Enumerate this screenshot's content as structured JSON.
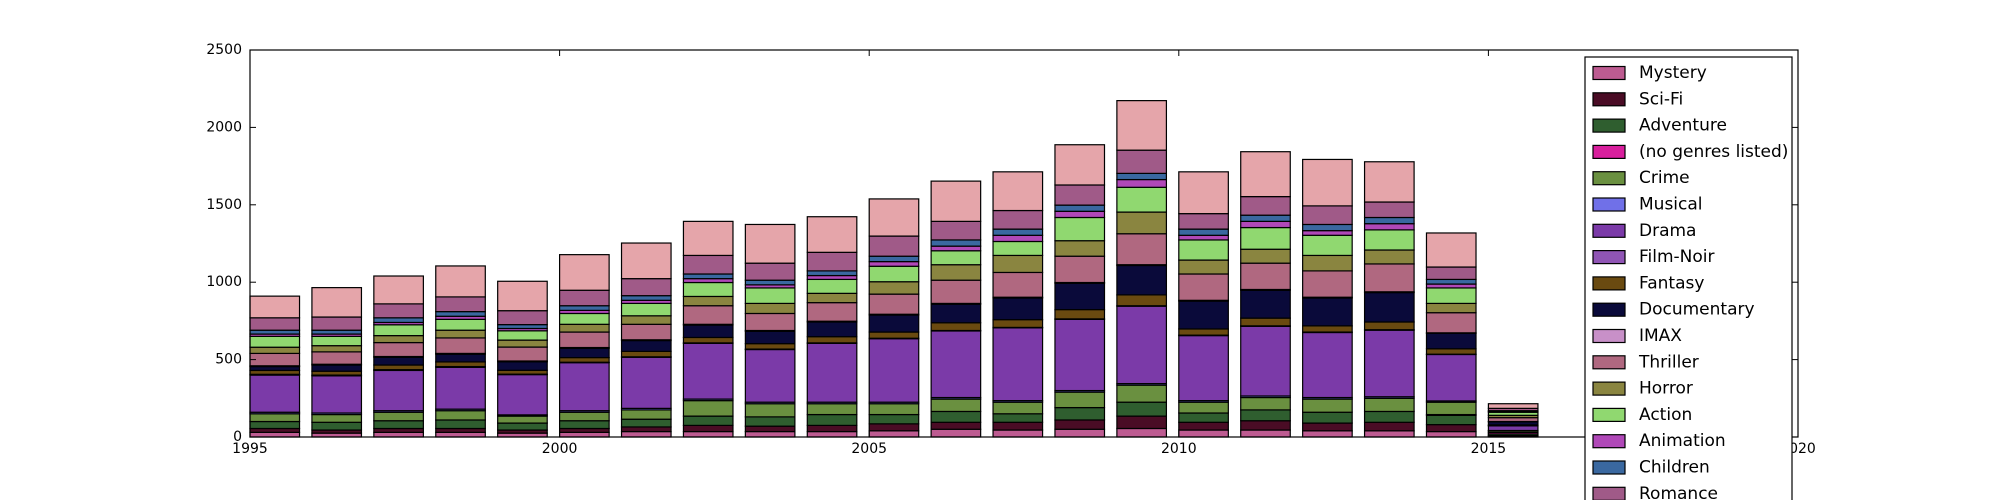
{
  "chart_data": {
    "type": "bar",
    "stacked": true,
    "x": [
      1995,
      1996,
      1997,
      1998,
      1999,
      2000,
      2001,
      2002,
      2003,
      2004,
      2005,
      2006,
      2007,
      2008,
      2009,
      2010,
      2011,
      2012,
      2013,
      2014,
      2015
    ],
    "xlim": [
      1995,
      2020
    ],
    "xticks": [
      1995,
      2000,
      2005,
      2010,
      2015,
      2020
    ],
    "ylim": [
      0,
      2500
    ],
    "yticks": [
      0,
      500,
      1000,
      1500,
      2000,
      2500
    ],
    "legend": "upper right",
    "series": [
      {
        "name": "Mystery",
        "color": "#bd5b91",
        "values": [
          30,
          25,
          30,
          30,
          25,
          30,
          35,
          35,
          35,
          35,
          40,
          50,
          45,
          50,
          55,
          45,
          45,
          40,
          40,
          35,
          5
        ]
      },
      {
        "name": "Sci-Fi",
        "color": "#4a0c25",
        "values": [
          25,
          20,
          25,
          25,
          20,
          25,
          30,
          40,
          35,
          40,
          45,
          45,
          50,
          60,
          80,
          50,
          60,
          50,
          55,
          45,
          5
        ]
      },
      {
        "name": "Adventure",
        "color": "#2f5e2f",
        "values": [
          45,
          50,
          50,
          55,
          45,
          50,
          50,
          60,
          60,
          70,
          60,
          70,
          55,
          80,
          90,
          60,
          70,
          70,
          70,
          60,
          10
        ]
      },
      {
        "name": "(no genres listed)",
        "color": "#d81f9d",
        "values": [
          0,
          0,
          0,
          0,
          0,
          0,
          0,
          0,
          0,
          0,
          0,
          0,
          0,
          0,
          0,
          0,
          0,
          0,
          0,
          5,
          10
        ]
      },
      {
        "name": "Crime",
        "color": "#6a9040",
        "values": [
          50,
          50,
          55,
          60,
          45,
          55,
          60,
          100,
          85,
          70,
          70,
          80,
          75,
          100,
          110,
          70,
          80,
          85,
          85,
          80,
          10
        ]
      },
      {
        "name": "Musical",
        "color": "#7070e8",
        "values": [
          10,
          10,
          10,
          10,
          8,
          10,
          10,
          10,
          10,
          10,
          10,
          10,
          10,
          10,
          10,
          10,
          10,
          10,
          10,
          8,
          2
        ]
      },
      {
        "name": "Drama",
        "color": "#7b3aa8",
        "values": [
          240,
          240,
          260,
          270,
          260,
          310,
          330,
          360,
          340,
          380,
          410,
          430,
          470,
          460,
          500,
          420,
          450,
          420,
          430,
          300,
          30
        ]
      },
      {
        "name": "Film-Noir",
        "color": "#9055b5",
        "values": [
          5,
          5,
          5,
          5,
          3,
          3,
          3,
          3,
          3,
          3,
          3,
          3,
          3,
          3,
          3,
          3,
          3,
          3,
          3,
          2,
          1
        ]
      },
      {
        "name": "Fantasy",
        "color": "#6a4a10",
        "values": [
          25,
          25,
          30,
          30,
          25,
          30,
          35,
          35,
          35,
          40,
          40,
          50,
          50,
          60,
          70,
          40,
          50,
          40,
          50,
          35,
          5
        ]
      },
      {
        "name": "Documentary",
        "color": "#0a0a3a",
        "values": [
          25,
          40,
          50,
          50,
          55,
          60,
          70,
          80,
          80,
          95,
          110,
          120,
          140,
          170,
          190,
          180,
          180,
          180,
          190,
          100,
          20
        ]
      },
      {
        "name": "IMAX",
        "color": "#c890c8",
        "values": [
          5,
          5,
          5,
          5,
          5,
          5,
          5,
          5,
          5,
          5,
          5,
          5,
          5,
          5,
          5,
          5,
          5,
          5,
          5,
          3,
          2
        ]
      },
      {
        "name": "Thriller",
        "color": "#b06880",
        "values": [
          80,
          80,
          90,
          100,
          90,
          100,
          100,
          120,
          110,
          120,
          130,
          150,
          160,
          170,
          200,
          170,
          170,
          170,
          180,
          130,
          25
        ]
      },
      {
        "name": "Horror",
        "color": "#8a8540",
        "values": [
          40,
          40,
          45,
          50,
          45,
          50,
          55,
          60,
          65,
          60,
          80,
          100,
          110,
          100,
          140,
          90,
          90,
          100,
          90,
          60,
          15
        ]
      },
      {
        "name": "Action",
        "color": "#90d870",
        "values": [
          70,
          60,
          70,
          70,
          60,
          70,
          80,
          90,
          100,
          90,
          100,
          90,
          90,
          150,
          160,
          130,
          140,
          130,
          130,
          100,
          20
        ]
      },
      {
        "name": "Animation",
        "color": "#b048b8",
        "values": [
          15,
          15,
          15,
          20,
          15,
          20,
          20,
          25,
          20,
          25,
          30,
          30,
          40,
          40,
          50,
          30,
          40,
          30,
          40,
          25,
          5
        ]
      },
      {
        "name": "Children",
        "color": "#3a68a0",
        "values": [
          25,
          25,
          30,
          30,
          25,
          30,
          30,
          30,
          30,
          30,
          35,
          40,
          40,
          40,
          40,
          40,
          40,
          40,
          40,
          30,
          5
        ]
      },
      {
        "name": "Romance",
        "color": "#a05a88",
        "values": [
          80,
          85,
          90,
          95,
          90,
          100,
          110,
          120,
          110,
          120,
          130,
          120,
          120,
          130,
          150,
          100,
          120,
          120,
          100,
          80,
          15
        ]
      },
      {
        "color": "#e5a5aa",
        "values": [
          140,
          190,
          180,
          200,
          190,
          230,
          230,
          220,
          250,
          230,
          240,
          260,
          250,
          260,
          320,
          270,
          290,
          300,
          260,
          220,
          30
        ]
      }
    ]
  }
}
